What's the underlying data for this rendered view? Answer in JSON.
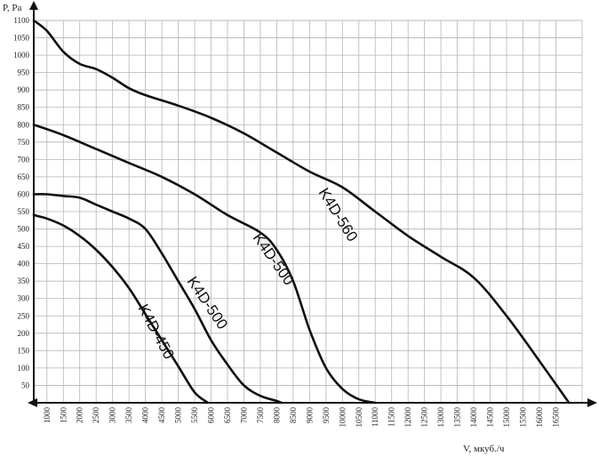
{
  "chart_data": {
    "type": "line",
    "xlabel": "V, мкуб./ч",
    "ylabel": "P, Pa",
    "xlim": [
      600,
      17300
    ],
    "ylim": [
      0,
      1100
    ],
    "x_ticks": [
      1000,
      1500,
      2000,
      2500,
      3000,
      3500,
      4000,
      4500,
      5000,
      5500,
      6000,
      6500,
      7000,
      7500,
      8000,
      8500,
      9000,
      9500,
      10000,
      10500,
      11000,
      11500,
      12000,
      12500,
      13000,
      13500,
      14000,
      14500,
      15000,
      15500,
      16000,
      16500
    ],
    "x_tick_labels": [
      "1000",
      "1500",
      "2000",
      "2500",
      "3000",
      "3500",
      "4000",
      "4500",
      "5000",
      "5500",
      "6000",
      "6500",
      "7000",
      "7500",
      "8000",
      "8500",
      "9000",
      "9500",
      "10000",
      "10500",
      "11000",
      "11500",
      "12000",
      "12500",
      "13000",
      "13500",
      "14000",
      "14500",
      "15000",
      "15500",
      "16000",
      "16500"
    ],
    "y_ticks": [
      50,
      100,
      150,
      200,
      250,
      300,
      350,
      400,
      450,
      500,
      550,
      600,
      650,
      700,
      750,
      800,
      850,
      900,
      950,
      1000,
      1050,
      1100
    ],
    "grid": true,
    "series": [
      {
        "name": "K4D-450",
        "x": [
          600,
          1000,
          1500,
          2000,
          2500,
          3000,
          3500,
          4000,
          4500,
          5000,
          5500,
          5900
        ],
        "y": [
          540,
          530,
          510,
          480,
          440,
          390,
          330,
          255,
          180,
          105,
          30,
          0
        ]
      },
      {
        "name": "K4D-500",
        "x": [
          600,
          1000,
          1500,
          2000,
          2500,
          3000,
          3500,
          4000,
          4500,
          5000,
          5500,
          6000,
          6500,
          7000,
          7500,
          8000,
          8150
        ],
        "y": [
          600,
          600,
          595,
          590,
          570,
          550,
          530,
          500,
          430,
          350,
          270,
          180,
          110,
          50,
          20,
          5,
          0
        ]
      },
      {
        "name": "K4D-500",
        "x": [
          600,
          1500,
          2500,
          3500,
          4500,
          5500,
          6500,
          7500,
          8000,
          8500,
          9000,
          9500,
          10000,
          10500,
          11000
        ],
        "y": [
          800,
          770,
          730,
          690,
          650,
          600,
          540,
          490,
          440,
          350,
          210,
          100,
          40,
          10,
          0
        ]
      },
      {
        "name": "K4D-560",
        "x": [
          600,
          1000,
          1500,
          2000,
          2500,
          3000,
          3500,
          4000,
          5000,
          6000,
          7000,
          8000,
          9000,
          10000,
          11000,
          12000,
          13000,
          14000,
          15000,
          16000,
          16900
        ],
        "y": [
          1100,
          1070,
          1010,
          975,
          960,
          935,
          905,
          885,
          855,
          820,
          775,
          720,
          665,
          620,
          550,
          480,
          420,
          360,
          250,
          120,
          0
        ]
      }
    ]
  }
}
